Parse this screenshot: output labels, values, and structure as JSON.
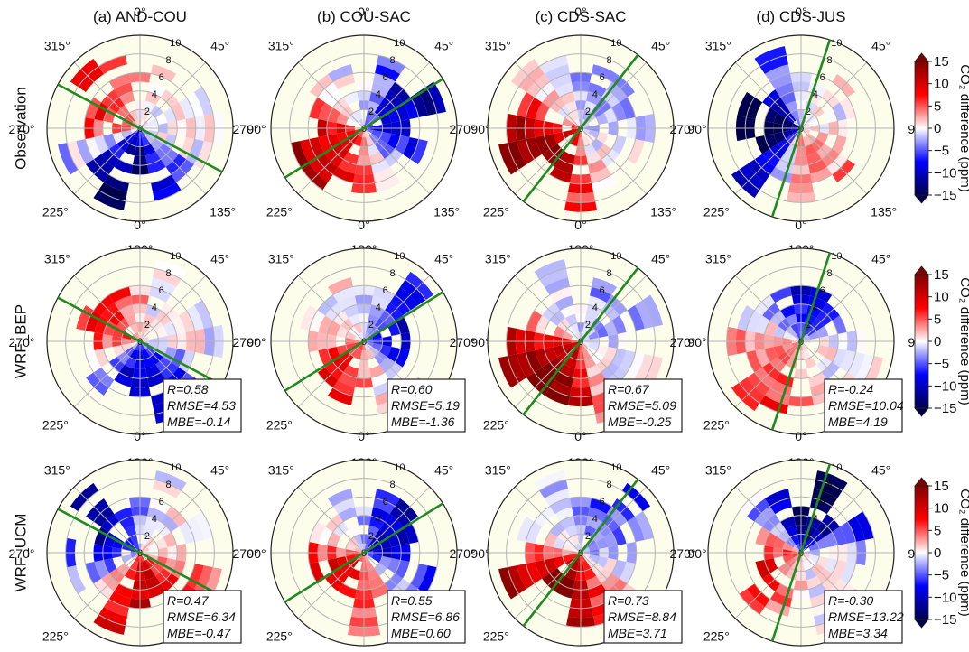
{
  "chart_data": {
    "type": "heatmap",
    "subtype": "polar-bivariate",
    "column_titles": [
      "(a) AND-COU",
      "(b) COU-SAC",
      "(c) CDS-SAC",
      "(d) CDS-JUS"
    ],
    "row_titles": [
      "Observation",
      "WRF_BEP",
      "WRF_UCM"
    ],
    "angle_labels": [
      "0°",
      "45°",
      "90°",
      "135°",
      "180°",
      "225°",
      "270°",
      "315°"
    ],
    "radial_ticks": [
      "0",
      "2",
      "4",
      "6",
      "8",
      "10"
    ],
    "radial_lim": [
      0,
      10
    ],
    "direction_bins": 16,
    "colorbar": {
      "label": "CO₂ difference (ppm)",
      "ticks": [
        "15",
        "10",
        "5",
        "0",
        "−5",
        "−10",
        "−15"
      ],
      "range": [
        -15,
        15
      ],
      "colormap": "seismic",
      "extend": "both"
    },
    "colors": {
      "polar_background": "#fdfdeb",
      "reference_line": "#1f8a1f",
      "grid": "#b4b4b4"
    },
    "line_directions_deg": [
      118,
      58,
      38,
      18
    ],
    "panel_patterns": [
      [
        {
          "pos": [
            290,
            8
          ],
          "neg": [
            195,
            15
          ]
        },
        {
          "pos": [
            235,
            13
          ],
          "neg": [
            75,
            12
          ]
        },
        {
          "pos": [
            235,
            17
          ],
          "neg": [
            55,
            4
          ]
        },
        {
          "pos": [
            175,
            5
          ],
          "neg": [
            270,
            22
          ]
        }
      ],
      [
        {
          "pos": [
            300,
            8
          ],
          "neg": [
            175,
            13
          ]
        },
        {
          "pos": [
            225,
            9
          ],
          "neg": [
            80,
            10
          ]
        },
        {
          "pos": [
            225,
            18
          ],
          "neg": [
            45,
            4
          ]
        },
        {
          "pos": [
            220,
            7
          ],
          "neg": [
            10,
            9
          ]
        }
      ],
      [
        {
          "pos": [
            165,
            13
          ],
          "neg": [
            300,
            12
          ]
        },
        {
          "pos": [
            225,
            12
          ],
          "neg": [
            65,
            14
          ]
        },
        {
          "pos": [
            210,
            18
          ],
          "neg": [
            45,
            6
          ]
        },
        {
          "pos": [
            250,
            9
          ],
          "neg": [
            15,
            16
          ]
        }
      ]
    ],
    "stats": [
      null,
      [
        [
          "R=0.58",
          "RMSE=4.53",
          "MBE=-0.14"
        ],
        [
          "R=0.60",
          "RMSE=5.19",
          "MBE=-1.36"
        ],
        [
          "R=0.67",
          "RMSE=5.09",
          "MBE=-0.25"
        ],
        [
          "R=-0.24",
          "RMSE=10.04",
          "MBE=4.19"
        ]
      ],
      [
        [
          "R=0.47",
          "RMSE=6.34",
          "MBE=-0.47"
        ],
        [
          "R=0.55",
          "RMSE=6.86",
          "MBE=0.60"
        ],
        [
          "R=0.73",
          "RMSE=8.84",
          "MBE=3.71"
        ],
        [
          "R=-0.30",
          "RMSE=13.22",
          "MBE=3.34"
        ]
      ]
    ]
  }
}
